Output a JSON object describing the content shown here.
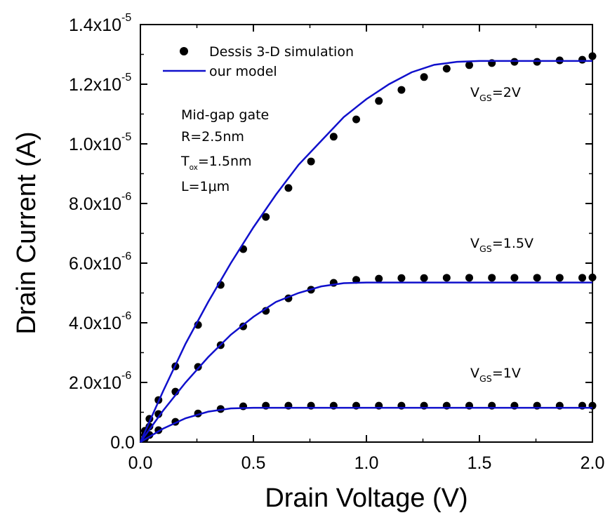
{
  "chart_data": {
    "type": "scatter-line",
    "x_label": "Drain Voltage (V)",
    "y_label": "Drain Current (A)",
    "xlim": [
      0,
      2.0
    ],
    "ylim": [
      0,
      1.4e-05
    ],
    "xticks": [
      {
        "value": 0,
        "label": "0.0"
      },
      {
        "value": 0.5,
        "label": "0.5"
      },
      {
        "value": 1.0,
        "label": "1.0"
      },
      {
        "value": 1.5,
        "label": "1.5"
      },
      {
        "value": 2.0,
        "label": "2.0"
      }
    ],
    "yticks": [
      {
        "value": 0,
        "label": "0.0"
      },
      {
        "value": 2e-06,
        "label": "2.0x10",
        "exponent": "-6"
      },
      {
        "value": 4e-06,
        "label": "4.0x10",
        "exponent": "-6"
      },
      {
        "value": 6e-06,
        "label": "6.0x10",
        "exponent": "-6"
      },
      {
        "value": 8e-06,
        "label": "8.0x10",
        "exponent": "-6"
      },
      {
        "value": 1e-05,
        "label": "1.0x10",
        "exponent": "-5"
      },
      {
        "value": 1.2e-05,
        "label": "1.2x10",
        "exponent": "-5"
      },
      {
        "value": 1.4e-05,
        "label": "1.4x10",
        "exponent": "-5"
      }
    ],
    "series": [
      {
        "name": "Dessis 3-D simulation",
        "color": "#000000",
        "marker": "circle",
        "x": [
          0.02,
          0.04,
          0.08,
          0.155,
          0.255,
          0.355,
          0.455,
          0.555,
          0.655,
          0.755,
          0.855,
          0.955,
          1.055,
          1.155,
          1.255,
          1.355,
          1.455,
          1.555,
          1.655,
          1.755,
          1.855,
          1.955,
          2.0
        ],
        "curves": [
          {
            "values": [
              3.8e-07,
              7.8e-07,
              1.41e-06,
              2.54e-06,
              3.93e-06,
              5.27e-06,
              6.47e-06,
              7.55e-06,
              8.52e-06,
              9.41e-06,
              1.024e-05,
              1.082e-05,
              1.144e-05,
              1.181e-05,
              1.224e-05,
              1.252e-05,
              1.264e-05,
              1.271e-05,
              1.275e-05,
              1.275e-05,
              1.28e-05,
              1.282e-05,
              1.294e-05
            ]
          },
          {
            "values": [
              2.4e-07,
              5.2e-07,
              9.4e-07,
              1.69e-06,
              2.52e-06,
              3.25e-06,
              3.88e-06,
              4.4e-06,
              4.82e-06,
              5.11e-06,
              5.34e-06,
              5.44e-06,
              5.48e-06,
              5.5e-06,
              5.5e-06,
              5.51e-06,
              5.51e-06,
              5.51e-06,
              5.51e-06,
              5.51e-06,
              5.51e-06,
              5.51e-06,
              5.52e-06
            ]
          },
          {
            "values": [
              1.2e-07,
              2.4e-07,
              4e-07,
              6.8e-07,
              9.6e-07,
              1.11e-06,
              1.2e-06,
              1.22e-06,
              1.22e-06,
              1.22e-06,
              1.22e-06,
              1.22e-06,
              1.22e-06,
              1.22e-06,
              1.22e-06,
              1.22e-06,
              1.22e-06,
              1.22e-06,
              1.22e-06,
              1.22e-06,
              1.22e-06,
              1.22e-06,
              1.22e-06
            ]
          }
        ]
      },
      {
        "name": "our model",
        "color": "#1010cc",
        "marker": "line",
        "x": [
          0,
          0.1,
          0.2,
          0.3,
          0.4,
          0.5,
          0.6,
          0.7,
          0.8,
          0.9,
          1.0,
          1.1,
          1.2,
          1.3,
          1.4,
          1.5,
          1.6,
          1.7,
          1.8,
          1.9,
          2.0
        ],
        "curves": [
          {
            "values": [
              0,
              1.7e-06,
              3.3e-06,
              4.7e-06,
              6e-06,
              7.2e-06,
              8.3e-06,
              9.3e-06,
              1.01e-05,
              1.09e-05,
              1.15e-05,
              1.2e-05,
              1.24e-05,
              1.265e-05,
              1.275e-05,
              1.278e-05,
              1.278e-05,
              1.278e-05,
              1.278e-05,
              1.278e-05,
              1.278e-05
            ]
          },
          {
            "values": [
              0,
              1.05e-06,
              2e-06,
              2.85e-06,
              3.6e-06,
              4.2e-06,
              4.7e-06,
              5e-06,
              5.22e-06,
              5.33e-06,
              5.35e-06,
              5.35e-06,
              5.35e-06,
              5.35e-06,
              5.35e-06,
              5.35e-06,
              5.35e-06,
              5.35e-06,
              5.35e-06,
              5.35e-06,
              5.35e-06
            ]
          },
          {
            "values": [
              0,
              4.5e-07,
              8e-07,
              1.02e-06,
              1.13e-06,
              1.15e-06,
              1.15e-06,
              1.15e-06,
              1.15e-06,
              1.15e-06,
              1.15e-06,
              1.15e-06,
              1.15e-06,
              1.15e-06,
              1.15e-06,
              1.15e-06,
              1.15e-06,
              1.15e-06,
              1.15e-06,
              1.15e-06,
              1.15e-06
            ]
          }
        ]
      }
    ],
    "annotations": [
      {
        "text": "V",
        "sub": "GS",
        "tail": "=2V"
      },
      {
        "text": "V",
        "sub": "GS",
        "tail": "=1.5V"
      },
      {
        "text": "V",
        "sub": "GS",
        "tail": "=1V"
      },
      {
        "text": "Mid-gap gate"
      },
      {
        "text": "R=2.5nm"
      },
      {
        "text": "T",
        "sub": "ox",
        "tail": "=1.5nm"
      },
      {
        "text": "L=1μm"
      }
    ]
  }
}
